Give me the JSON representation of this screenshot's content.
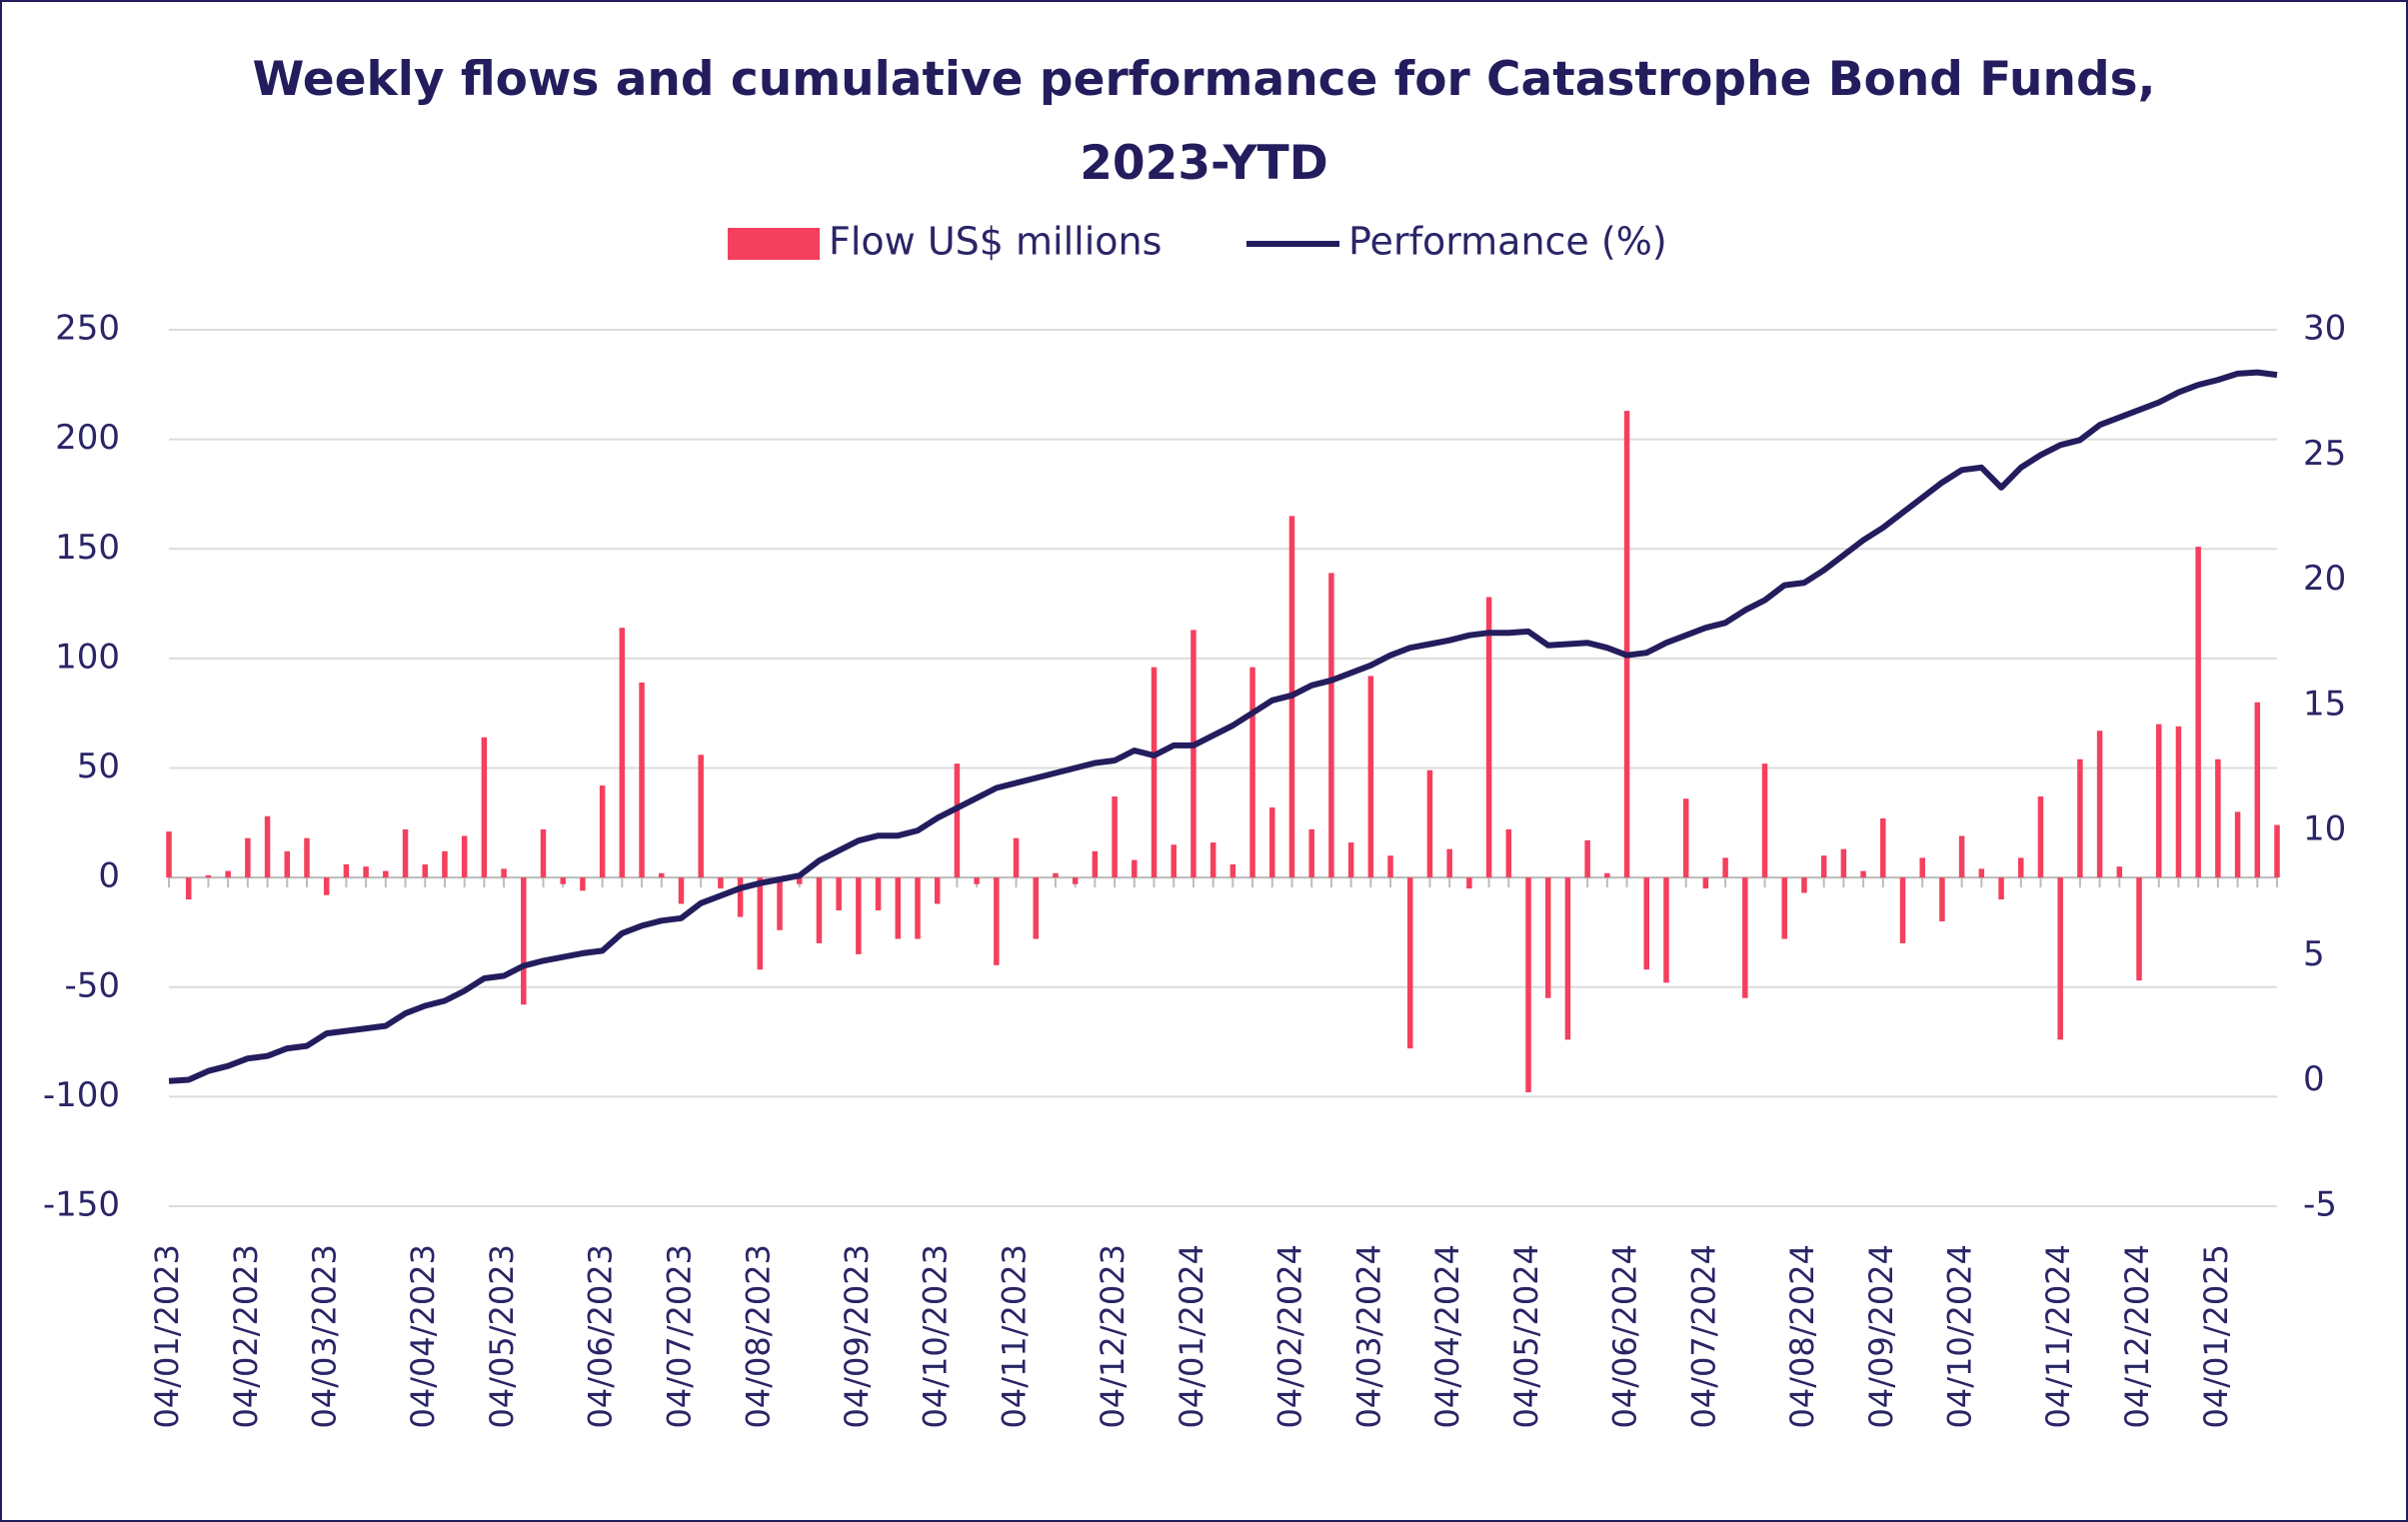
{
  "chart_data": {
    "type": "bar",
    "title": "Weekly flows and cumulative performance for Catastrophe Bond Funds, 2023-YTD",
    "categories": [
      "04/01/2023",
      null,
      null,
      null,
      "04/02/2023",
      null,
      null,
      null,
      "04/03/2023",
      null,
      null,
      null,
      null,
      "04/04/2023",
      null,
      null,
      null,
      "04/05/2023",
      null,
      null,
      null,
      null,
      "04/06/2023",
      null,
      null,
      null,
      "04/07/2023",
      null,
      null,
      null,
      "04/08/2023",
      null,
      null,
      null,
      null,
      "04/09/2023",
      null,
      null,
      null,
      "04/10/2023",
      null,
      null,
      null,
      "04/11/2023",
      null,
      null,
      null,
      null,
      "04/12/2023",
      null,
      null,
      null,
      "04/01/2024",
      null,
      null,
      null,
      null,
      "04/02/2024",
      null,
      null,
      null,
      "04/03/2024",
      null,
      null,
      null,
      "04/04/2024",
      null,
      null,
      null,
      "04/05/2024",
      null,
      null,
      null,
      null,
      "04/06/2024",
      null,
      null,
      null,
      "04/07/2024",
      null,
      null,
      null,
      null,
      "04/08/2024",
      null,
      null,
      null,
      "04/09/2024",
      null,
      null,
      null,
      "04/10/2024",
      null,
      null,
      null,
      null,
      "04/11/2024",
      null,
      null,
      null,
      "04/12/2024",
      null,
      null,
      null,
      "04/01/2025",
      null,
      null,
      null
    ],
    "series": [
      {
        "name": "Flow US$ millions",
        "type": "bar",
        "color": "#f43f5e",
        "values": [
          21,
          -10,
          1,
          3,
          18,
          28,
          12,
          18,
          -8,
          6,
          5,
          3,
          22,
          6,
          12,
          19,
          64,
          4,
          -58,
          22,
          -3,
          -6,
          42,
          114,
          89,
          2,
          -12,
          56,
          -5,
          -18,
          -42,
          -24,
          -3,
          -30,
          -15,
          -35,
          -15,
          -28,
          -28,
          -12,
          52,
          -3,
          -40,
          18,
          -28,
          2,
          -3,
          12,
          37,
          8,
          96,
          15,
          113,
          16,
          6,
          96,
          32,
          165,
          22,
          139,
          16,
          92,
          10,
          -78,
          49,
          13,
          -5,
          128,
          22,
          -98,
          -55,
          -74,
          17,
          2,
          213,
          -42,
          -48,
          36,
          -5,
          9,
          -55,
          52,
          -28,
          -7,
          10,
          13,
          3,
          27,
          -30,
          9,
          -20,
          19,
          4,
          -10,
          9,
          37,
          -74,
          54,
          67,
          5,
          -47,
          70,
          69,
          151,
          54,
          30,
          80,
          24
        ]
      },
      {
        "name": "Performance (%)",
        "type": "line",
        "axis": "y2",
        "color": "#231d5e",
        "values": [
          0,
          0.05,
          0.4,
          0.6,
          0.9,
          1.0,
          1.3,
          1.4,
          1.9,
          2.0,
          2.1,
          2.2,
          2.7,
          3.0,
          3.2,
          3.6,
          4.1,
          4.2,
          4.6,
          4.8,
          4.95,
          5.1,
          5.2,
          5.9,
          6.2,
          6.4,
          6.5,
          7.1,
          7.4,
          7.7,
          7.9,
          8.05,
          8.2,
          8.8,
          9.2,
          9.6,
          9.8,
          9.8,
          10.0,
          10.5,
          10.9,
          11.3,
          11.7,
          11.9,
          12.1,
          12.3,
          12.5,
          12.7,
          12.8,
          13.2,
          13.0,
          13.4,
          13.4,
          13.8,
          14.2,
          14.7,
          15.2,
          15.4,
          15.8,
          16.0,
          16.3,
          16.6,
          17.0,
          17.3,
          17.45,
          17.6,
          17.8,
          17.9,
          17.9,
          17.95,
          17.4,
          17.45,
          17.5,
          17.3,
          17.0,
          17.1,
          17.5,
          17.8,
          18.1,
          18.3,
          18.8,
          19.2,
          19.8,
          19.9,
          20.4,
          21.0,
          21.6,
          22.1,
          22.7,
          23.3,
          23.9,
          24.4,
          24.5,
          23.7,
          24.5,
          25.0,
          25.4,
          25.6,
          26.2,
          26.5,
          26.8,
          27.1,
          27.5,
          27.8,
          28.0,
          28.25,
          28.3,
          28.2
        ]
      }
    ],
    "ylim": [
      -150,
      250
    ],
    "yticks": [
      -150,
      -100,
      -50,
      0,
      50,
      100,
      150,
      200,
      250
    ],
    "y2lim": [
      -5,
      30
    ],
    "y2ticks": [
      -5,
      0,
      5,
      10,
      15,
      20,
      25,
      30
    ],
    "grid": true,
    "legend": "top"
  }
}
